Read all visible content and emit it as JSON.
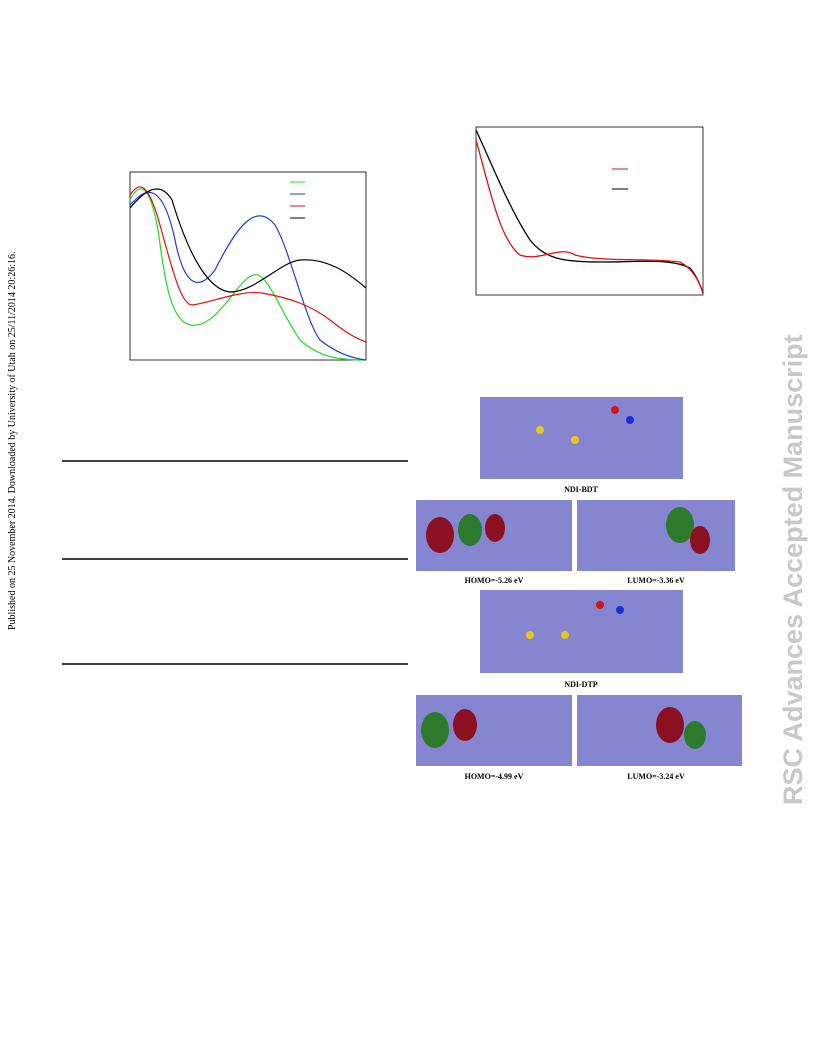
{
  "sidebar": {
    "published": "Published on 25 November 2014. Downloaded by University of Utah on 25/11/2014 20:26:16."
  },
  "watermark": "RSC Advances Accepted Manuscript",
  "figure": {
    "molecule_1": "NDI-BDT",
    "homo_1": "HOMO=-5.26 eV",
    "lumo_1": "LUMO=-3.36 eV",
    "molecule_2": "NDI-DTP",
    "homo_2": "HOMO=-4.99 eV",
    "lumo_2": "LUMO=-3.24 eV"
  }
}
